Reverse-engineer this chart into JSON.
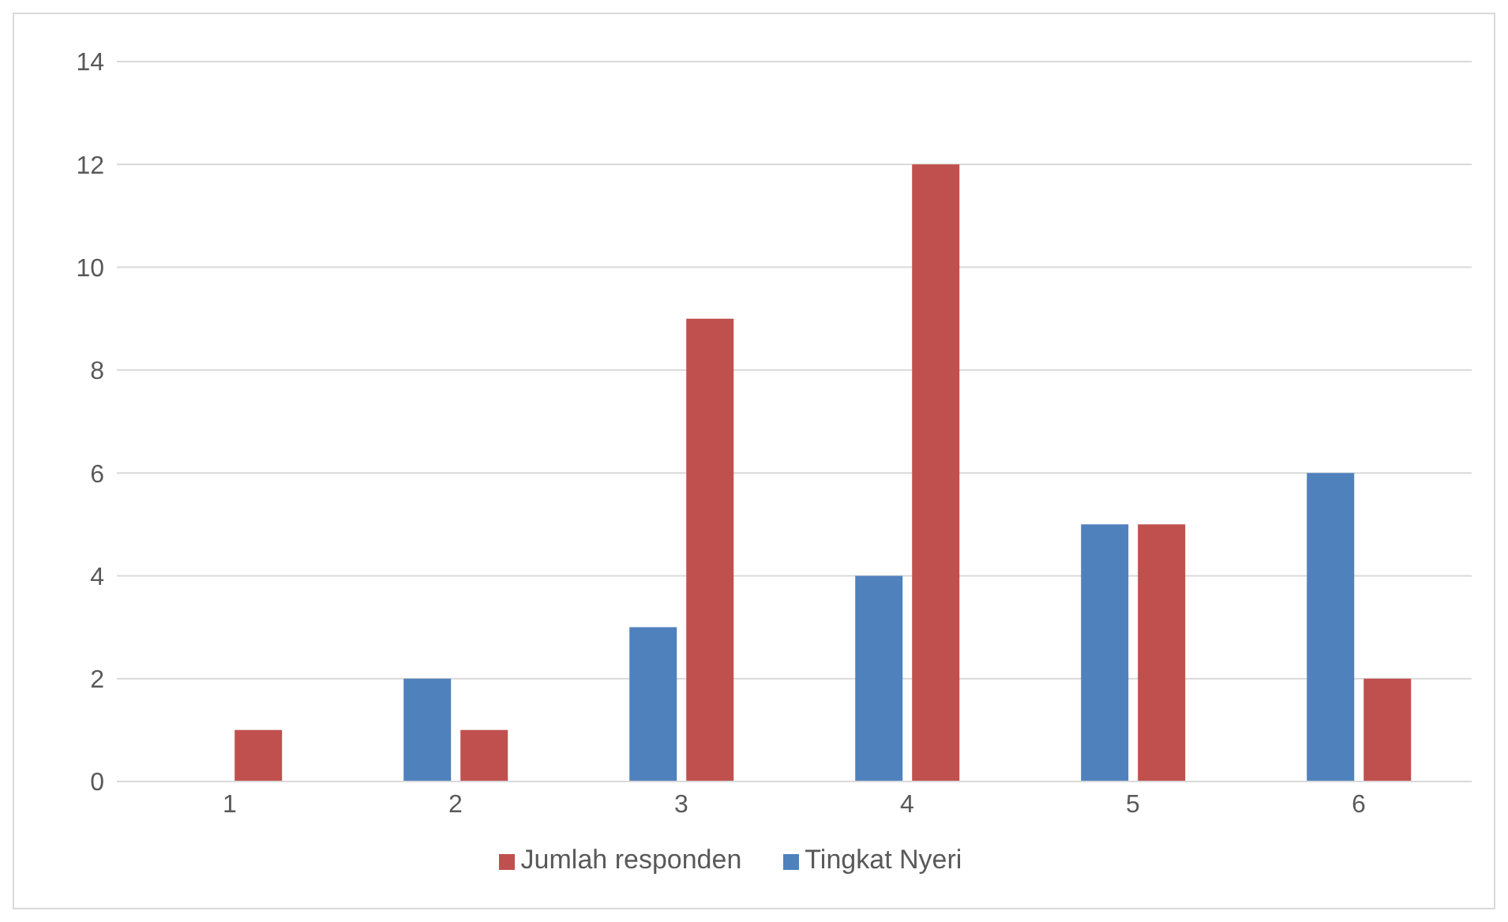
{
  "chart_data": {
    "type": "bar",
    "categories": [
      "1",
      "2",
      "3",
      "4",
      "5",
      "6"
    ],
    "series": [
      {
        "name": "Tingkat Nyeri",
        "color": "#4f81bd",
        "values": [
          0,
          2,
          3,
          4,
          5,
          6
        ]
      },
      {
        "name": "Jumlah responden",
        "color": "#c0504d",
        "values": [
          1,
          1,
          9,
          12,
          5,
          2
        ]
      }
    ],
    "ylim": [
      0,
      14
    ],
    "yticks": [
      0,
      2,
      4,
      6,
      8,
      10,
      12,
      14
    ],
    "grid": "y",
    "legend": "bottom"
  }
}
